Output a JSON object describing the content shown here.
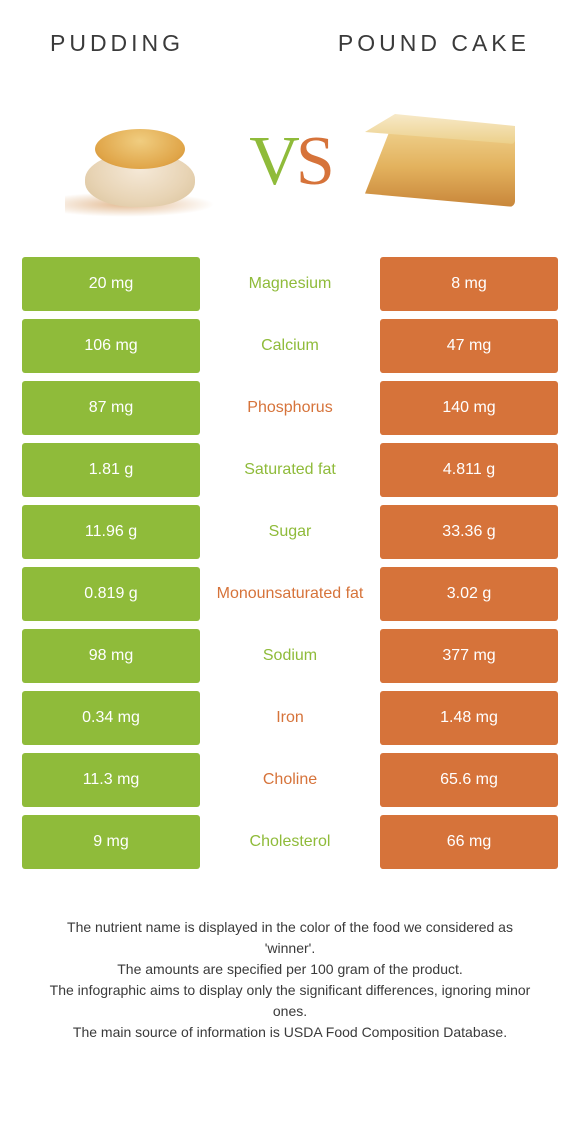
{
  "colors": {
    "green": "#8fbb3a",
    "orange": "#d6733a",
    "text_dark": "#3a3a3a",
    "white": "#ffffff"
  },
  "header": {
    "left_title": "Pudding",
    "right_title": "Pound Cake"
  },
  "vs": {
    "v": "V",
    "s": "S"
  },
  "table": {
    "rows": [
      {
        "left": "20 mg",
        "label": "Magnesium",
        "right": "8 mg",
        "winner": "left"
      },
      {
        "left": "106 mg",
        "label": "Calcium",
        "right": "47 mg",
        "winner": "left"
      },
      {
        "left": "87 mg",
        "label": "Phosphorus",
        "right": "140 mg",
        "winner": "right"
      },
      {
        "left": "1.81 g",
        "label": "Saturated fat",
        "right": "4.811 g",
        "winner": "left"
      },
      {
        "left": "11.96 g",
        "label": "Sugar",
        "right": "33.36 g",
        "winner": "left"
      },
      {
        "left": "0.819 g",
        "label": "Monounsaturated fat",
        "right": "3.02 g",
        "winner": "right"
      },
      {
        "left": "98 mg",
        "label": "Sodium",
        "right": "377 mg",
        "winner": "left"
      },
      {
        "left": "0.34 mg",
        "label": "Iron",
        "right": "1.48 mg",
        "winner": "right"
      },
      {
        "left": "11.3 mg",
        "label": "Choline",
        "right": "65.6 mg",
        "winner": "right"
      },
      {
        "left": "9 mg",
        "label": "Cholesterol",
        "right": "66 mg",
        "winner": "left"
      }
    ]
  },
  "footnotes": {
    "line1": "The nutrient name is displayed in the color of the food we considered as 'winner'.",
    "line2": "The amounts are specified per 100 gram of the product.",
    "line3": "The infographic aims to display only the significant differences, ignoring minor ones.",
    "line4": "The main source of information is USDA Food Composition Database."
  }
}
